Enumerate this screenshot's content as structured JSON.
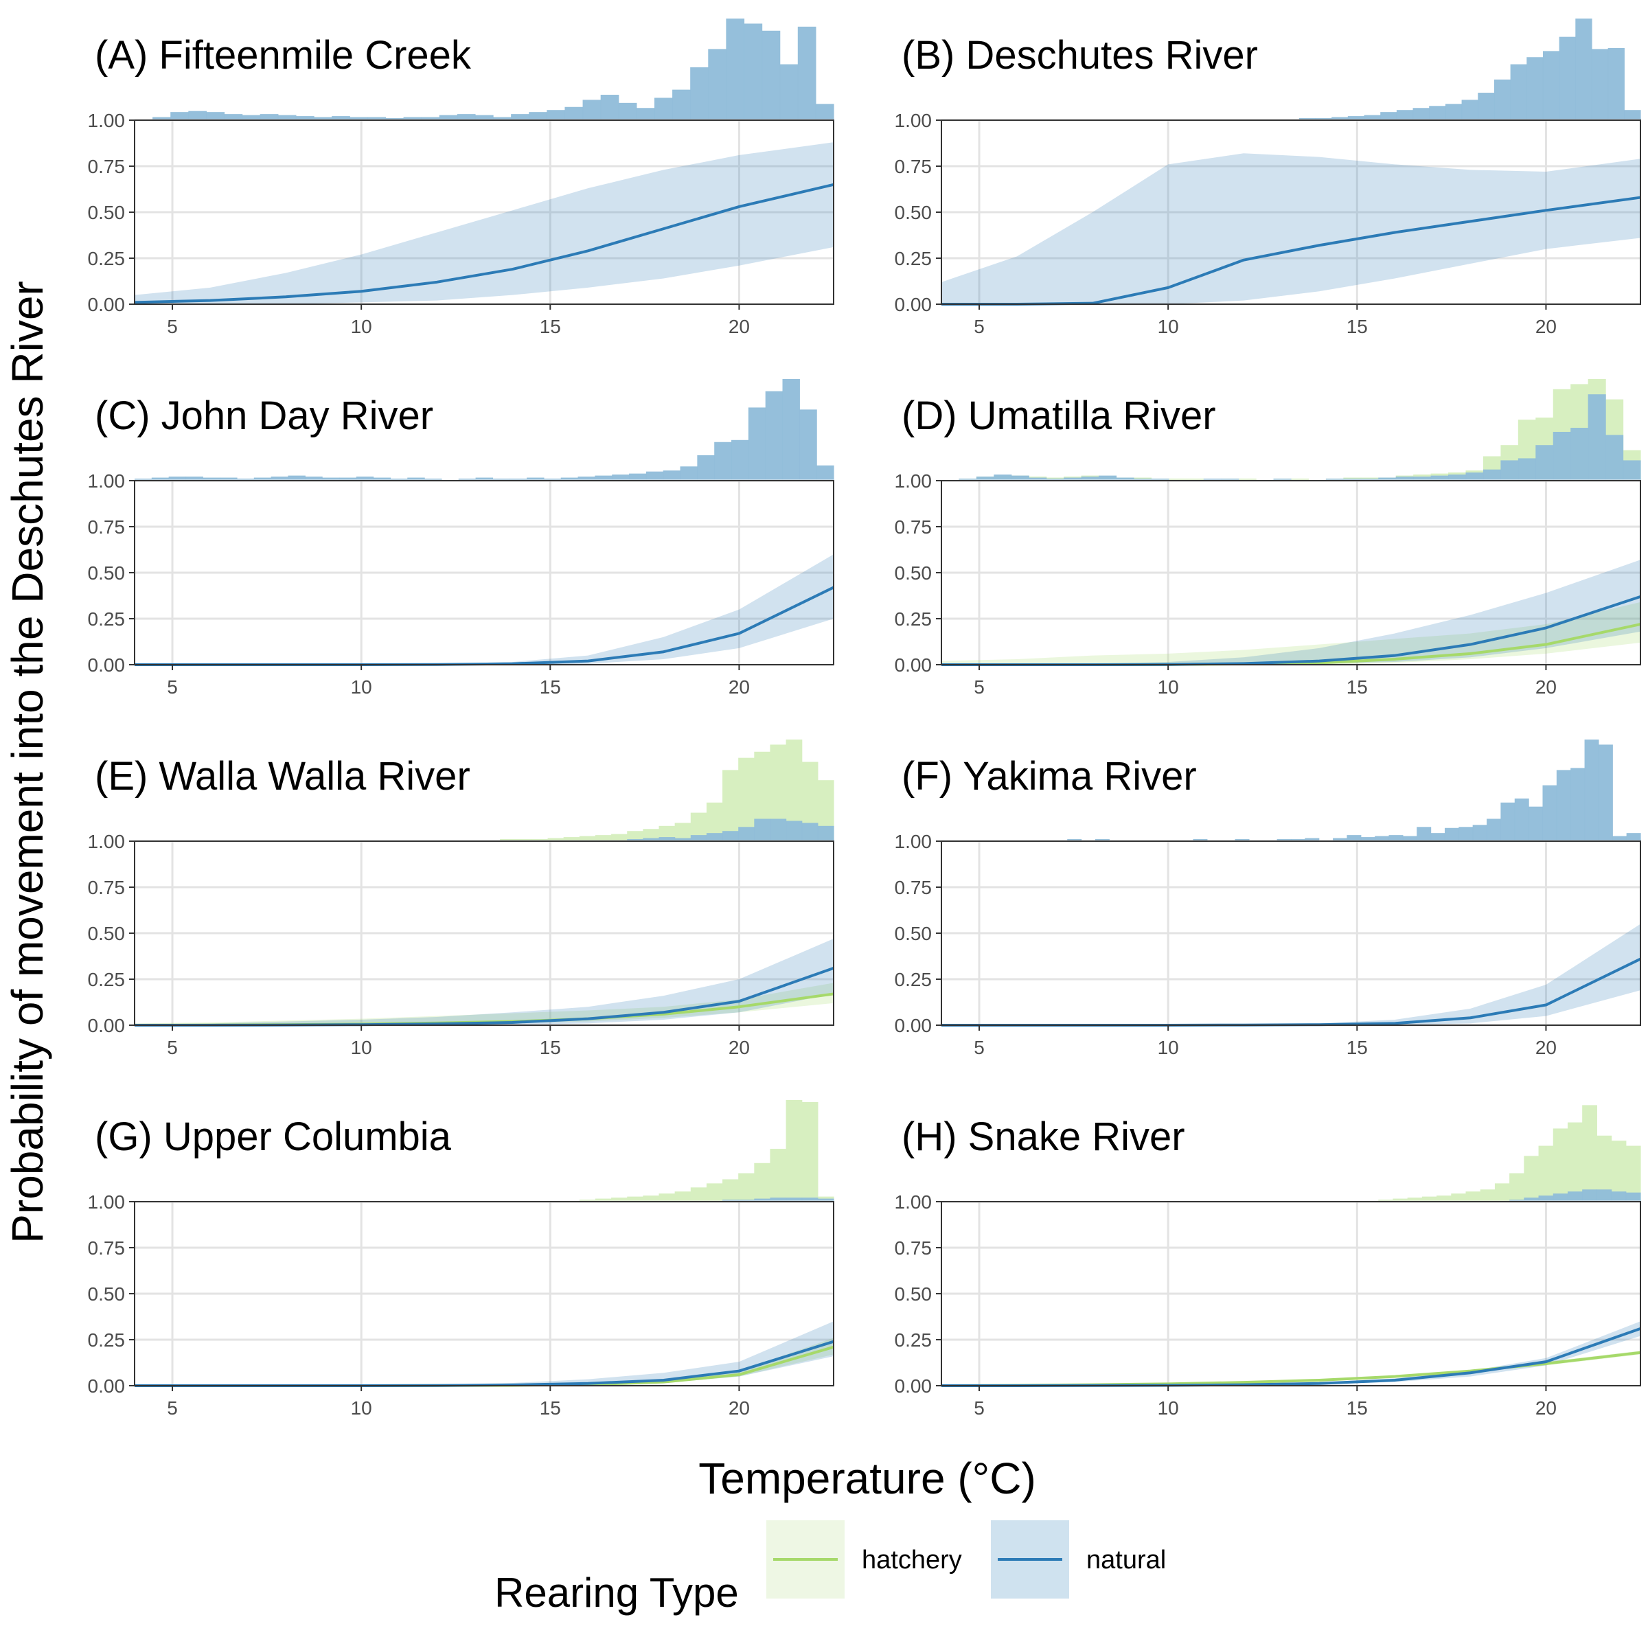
{
  "colors": {
    "hatchery": "#a6d96a",
    "natural": "#2c7bb6",
    "hatchery_hist": "#d7efc0",
    "natural_hist": "#8fbcd9",
    "grid": "#e3e3e3"
  },
  "axes": {
    "xlabel": "Temperature (°C)",
    "ylabel": "Probability of movement into the Deschutes River",
    "xlim": [
      4,
      22.5
    ],
    "ylim": [
      0,
      1
    ],
    "xticks": [
      "5",
      "10",
      "15",
      "20"
    ],
    "yticks": [
      "0.00",
      "0.25",
      "0.50",
      "0.75",
      "1.00"
    ]
  },
  "legend": {
    "title": "Rearing Type",
    "position": "bottom",
    "labels": [
      "hatchery",
      "natural"
    ]
  },
  "chart_data": [
    {
      "type": "line",
      "title": "(A) Fifteenmile Creek",
      "xlabel": "Temperature (°C)",
      "ylabel": "Probability of movement into the Deschutes River",
      "x": [
        4,
        6,
        8,
        10,
        12,
        14,
        16,
        18,
        20,
        22.5
      ],
      "series": [
        {
          "name": "natural",
          "values": [
            0.01,
            0.02,
            0.04,
            0.07,
            0.12,
            0.19,
            0.29,
            0.41,
            0.53,
            0.65
          ],
          "lower": [
            0,
            0,
            0,
            0.01,
            0.02,
            0.05,
            0.09,
            0.14,
            0.21,
            0.31
          ],
          "upper": [
            0.05,
            0.09,
            0.17,
            0.27,
            0.39,
            0.51,
            0.63,
            0.73,
            0.81,
            0.88
          ]
        }
      ],
      "histogram": {
        "natural": [
          0.01,
          0.03,
          0.08,
          0.09,
          0.08,
          0.06,
          0.05,
          0.06,
          0.05,
          0.04,
          0.03,
          0.04,
          0.03,
          0.03,
          0.02,
          0.03,
          0.03,
          0.05,
          0.06,
          0.05,
          0.03,
          0.06,
          0.08,
          0.1,
          0.13,
          0.2,
          0.25,
          0.17,
          0.12,
          0.22,
          0.3,
          0.52,
          0.7,
          1.0,
          0.95,
          0.88,
          0.55,
          0.92,
          0.16
        ]
      }
    },
    {
      "type": "line",
      "title": "(B) Deschutes River",
      "xlabel": "Temperature (°C)",
      "ylabel": "Probability of movement into the Deschutes River",
      "x": [
        4,
        6,
        8,
        10,
        12,
        14,
        16,
        18,
        20,
        22.5
      ],
      "series": [
        {
          "name": "natural",
          "values": [
            0,
            0,
            0.005,
            0.09,
            0.24,
            0.32,
            0.39,
            0.45,
            0.51,
            0.58
          ],
          "lower": [
            0,
            0,
            0,
            0,
            0.02,
            0.07,
            0.14,
            0.22,
            0.3,
            0.36
          ],
          "upper": [
            0.12,
            0.26,
            0.5,
            0.76,
            0.82,
            0.8,
            0.76,
            0.73,
            0.72,
            0.79
          ]
        }
      ],
      "histogram": {
        "natural": [
          0,
          0,
          0,
          0,
          0,
          0,
          0,
          0,
          0,
          0,
          0,
          0,
          0,
          0,
          0,
          0,
          0,
          0,
          0,
          0,
          0.01,
          0.01,
          0.02,
          0.02,
          0.03,
          0.04,
          0.05,
          0.08,
          0.1,
          0.12,
          0.14,
          0.16,
          0.2,
          0.27,
          0.4,
          0.55,
          0.62,
          0.68,
          0.82,
          1.0,
          0.7,
          0.71,
          0.1
        ]
      }
    },
    {
      "type": "line",
      "title": "(C) John Day River",
      "xlabel": "Temperature (°C)",
      "ylabel": "Probability of movement into the Deschutes River",
      "x": [
        4,
        6,
        8,
        10,
        12,
        14,
        16,
        18,
        20,
        22.5
      ],
      "series": [
        {
          "name": "natural",
          "values": [
            0,
            0,
            0,
            0,
            0.001,
            0.005,
            0.02,
            0.07,
            0.17,
            0.42
          ],
          "lower": [
            0,
            0,
            0,
            0,
            0,
            0,
            0.005,
            0.03,
            0.09,
            0.25
          ],
          "upper": [
            0,
            0,
            0,
            0.001,
            0.004,
            0.015,
            0.05,
            0.15,
            0.3,
            0.6
          ]
        }
      ],
      "histogram": {
        "natural": [
          0.02,
          0.03,
          0.04,
          0.04,
          0.03,
          0.03,
          0.02,
          0.03,
          0.04,
          0.05,
          0.04,
          0.03,
          0.03,
          0.04,
          0.03,
          0.02,
          0.03,
          0.02,
          0.01,
          0.02,
          0.03,
          0.02,
          0.02,
          0.03,
          0.02,
          0.03,
          0.04,
          0.05,
          0.06,
          0.07,
          0.09,
          0.1,
          0.14,
          0.25,
          0.38,
          0.4,
          0.72,
          0.88,
          1.0,
          0.7,
          0.15
        ]
      }
    },
    {
      "type": "line",
      "title": "(D) Umatilla River",
      "xlabel": "Temperature (°C)",
      "ylabel": "Probability of movement into the Deschutes River",
      "x": [
        4,
        6,
        8,
        10,
        12,
        14,
        16,
        18,
        20,
        22.5
      ],
      "series": [
        {
          "name": "hatchery",
          "values": [
            0,
            0,
            0,
            0.001,
            0.004,
            0.01,
            0.03,
            0.06,
            0.11,
            0.22
          ],
          "lower": [
            0,
            0,
            0,
            0,
            0,
            0,
            0.01,
            0.03,
            0.06,
            0.12
          ],
          "upper": [
            0.02,
            0.03,
            0.05,
            0.06,
            0.08,
            0.11,
            0.14,
            0.17,
            0.22,
            0.34
          ]
        },
        {
          "name": "natural",
          "values": [
            0,
            0,
            0,
            0.001,
            0.006,
            0.02,
            0.05,
            0.11,
            0.2,
            0.37
          ],
          "lower": [
            0,
            0,
            0,
            0,
            0,
            0.005,
            0.015,
            0.04,
            0.09,
            0.18
          ],
          "upper": [
            0,
            0.001,
            0.005,
            0.015,
            0.04,
            0.09,
            0.17,
            0.27,
            0.39,
            0.57
          ]
        }
      ],
      "histogram": {
        "hatchery": [
          0.01,
          0.02,
          0.04,
          0.05,
          0.05,
          0.04,
          0.03,
          0.04,
          0.05,
          0.04,
          0.03,
          0.03,
          0.02,
          0.02,
          0.02,
          0.01,
          0.02,
          0.02,
          0.01,
          0.02,
          0.02,
          0.01,
          0.02,
          0.03,
          0.03,
          0.03,
          0.05,
          0.06,
          0.07,
          0.08,
          0.1,
          0.24,
          0.35,
          0.6,
          0.62,
          0.9,
          0.95,
          1.0,
          0.8,
          0.3
        ],
        "natural": [
          0.01,
          0.02,
          0.04,
          0.06,
          0.05,
          0.03,
          0.02,
          0.03,
          0.04,
          0.05,
          0.03,
          0.02,
          0.02,
          0.01,
          0.01,
          0.02,
          0.02,
          0.01,
          0.01,
          0.02,
          0.01,
          0.01,
          0.02,
          0.02,
          0.02,
          0.03,
          0.04,
          0.04,
          0.05,
          0.06,
          0.08,
          0.11,
          0.2,
          0.22,
          0.35,
          0.48,
          0.52,
          0.85,
          0.45,
          0.2
        ]
      }
    },
    {
      "type": "line",
      "title": "(E) Walla Walla River",
      "xlabel": "Temperature (°C)",
      "ylabel": "Probability of movement into the Deschutes River",
      "x": [
        4,
        6,
        8,
        10,
        12,
        14,
        16,
        18,
        20,
        22.5
      ],
      "series": [
        {
          "name": "hatchery",
          "values": [
            0,
            0.001,
            0.003,
            0.006,
            0.012,
            0.02,
            0.035,
            0.06,
            0.1,
            0.17
          ],
          "lower": [
            0,
            0,
            0,
            0.001,
            0.004,
            0.01,
            0.02,
            0.04,
            0.07,
            0.12
          ],
          "upper": [
            0.01,
            0.015,
            0.025,
            0.035,
            0.05,
            0.065,
            0.08,
            0.1,
            0.14,
            0.23
          ]
        },
        {
          "name": "natural",
          "values": [
            0,
            0,
            0.001,
            0.003,
            0.007,
            0.015,
            0.035,
            0.07,
            0.13,
            0.31
          ],
          "lower": [
            0,
            0,
            0,
            0,
            0.001,
            0.004,
            0.01,
            0.03,
            0.07,
            0.17
          ],
          "upper": [
            0.005,
            0.01,
            0.02,
            0.03,
            0.045,
            0.07,
            0.1,
            0.16,
            0.25,
            0.47
          ]
        }
      ],
      "histogram": {
        "hatchery": [
          0,
          0,
          0,
          0,
          0,
          0,
          0,
          0,
          0,
          0,
          0,
          0,
          0,
          0,
          0,
          0,
          0,
          0,
          0,
          0,
          0.01,
          0.01,
          0.01,
          0.02,
          0.02,
          0.02,
          0.03,
          0.04,
          0.05,
          0.06,
          0.07,
          0.1,
          0.12,
          0.15,
          0.18,
          0.28,
          0.38,
          0.7,
          0.82,
          0.88,
          0.95,
          1.0,
          0.78,
          0.6
        ],
        "natural": [
          0,
          0,
          0,
          0,
          0,
          0,
          0,
          0,
          0,
          0,
          0,
          0,
          0,
          0,
          0,
          0,
          0,
          0,
          0,
          0,
          0,
          0,
          0,
          0,
          0,
          0,
          0,
          0,
          0,
          0,
          0.01,
          0.02,
          0.03,
          0.04,
          0.03,
          0.06,
          0.08,
          0.1,
          0.14,
          0.22,
          0.22,
          0.2,
          0.18,
          0.15
        ]
      }
    },
    {
      "type": "line",
      "title": "(F) Yakima River",
      "xlabel": "Temperature (°C)",
      "ylabel": "Probability of movement into the Deschutes River",
      "x": [
        4,
        6,
        8,
        10,
        12,
        14,
        16,
        18,
        20,
        22.5
      ],
      "series": [
        {
          "name": "natural",
          "values": [
            0,
            0,
            0,
            0,
            0.001,
            0.003,
            0.01,
            0.04,
            0.11,
            0.36
          ],
          "lower": [
            0,
            0,
            0,
            0,
            0,
            0,
            0.002,
            0.01,
            0.05,
            0.19
          ],
          "upper": [
            0,
            0,
            0,
            0.001,
            0.004,
            0.01,
            0.03,
            0.09,
            0.22,
            0.55
          ]
        }
      ],
      "histogram": {
        "natural": [
          0,
          0,
          0,
          0,
          0,
          0,
          0.01,
          0,
          0,
          0.02,
          0,
          0.02,
          0,
          0,
          0,
          0,
          0.01,
          0,
          0.02,
          0.01,
          0,
          0.02,
          0,
          0.01,
          0.02,
          0.02,
          0.03,
          0.01,
          0.03,
          0.06,
          0.04,
          0.05,
          0.06,
          0.05,
          0.14,
          0.08,
          0.13,
          0.14,
          0.16,
          0.22,
          0.38,
          0.42,
          0.34,
          0.55,
          0.7,
          0.72,
          1.0,
          0.95,
          0.05,
          0.08
        ]
      }
    },
    {
      "type": "line",
      "title": "(G) Upper Columbia",
      "xlabel": "Temperature (°C)",
      "ylabel": "Probability of movement into the Deschutes River",
      "x": [
        4,
        6,
        8,
        10,
        12,
        14,
        16,
        18,
        20,
        22.5
      ],
      "series": [
        {
          "name": "hatchery",
          "values": [
            0,
            0,
            0,
            0,
            0.001,
            0.002,
            0.006,
            0.02,
            0.06,
            0.21
          ],
          "lower": [
            0,
            0,
            0,
            0,
            0,
            0.001,
            0.004,
            0.015,
            0.05,
            0.17
          ],
          "upper": [
            0,
            0,
            0,
            0.001,
            0.002,
            0.004,
            0.01,
            0.03,
            0.08,
            0.26
          ]
        },
        {
          "name": "natural",
          "values": [
            0,
            0,
            0,
            0,
            0.001,
            0.004,
            0.012,
            0.03,
            0.08,
            0.24
          ],
          "lower": [
            0,
            0,
            0,
            0,
            0,
            0.001,
            0.004,
            0.015,
            0.05,
            0.16
          ],
          "upper": [
            0,
            0,
            0,
            0.002,
            0.006,
            0.015,
            0.035,
            0.07,
            0.13,
            0.35
          ]
        }
      ],
      "histogram": {
        "hatchery": [
          0,
          0,
          0,
          0,
          0,
          0,
          0,
          0,
          0,
          0,
          0,
          0,
          0,
          0,
          0,
          0,
          0,
          0,
          0,
          0,
          0,
          0,
          0,
          0,
          0.01,
          0.01,
          0.01,
          0.01,
          0.02,
          0.03,
          0.04,
          0.05,
          0.06,
          0.08,
          0.1,
          0.14,
          0.18,
          0.22,
          0.28,
          0.38,
          0.52,
          1.0,
          0.98,
          0.05
        ],
        "natural": [
          0,
          0,
          0,
          0,
          0,
          0,
          0,
          0,
          0,
          0,
          0,
          0,
          0,
          0,
          0,
          0,
          0,
          0,
          0,
          0,
          0,
          0,
          0,
          0,
          0,
          0,
          0,
          0,
          0,
          0,
          0,
          0,
          0,
          0,
          0,
          0,
          0.01,
          0.02,
          0.02,
          0.03,
          0.04,
          0.04,
          0.04,
          0.03
        ]
      }
    },
    {
      "type": "line",
      "title": "(H) Snake River",
      "xlabel": "Temperature (°C)",
      "ylabel": "Probability of movement into the Deschutes River",
      "x": [
        4,
        6,
        8,
        10,
        12,
        14,
        16,
        18,
        20,
        22.5
      ],
      "series": [
        {
          "name": "hatchery",
          "values": [
            0,
            0.002,
            0.005,
            0.01,
            0.018,
            0.03,
            0.05,
            0.08,
            0.12,
            0.18
          ],
          "lower": [
            0,
            0.001,
            0.004,
            0.009,
            0.016,
            0.028,
            0.045,
            0.075,
            0.11,
            0.17
          ],
          "upper": [
            0.001,
            0.003,
            0.006,
            0.012,
            0.02,
            0.033,
            0.055,
            0.085,
            0.13,
            0.19
          ]
        },
        {
          "name": "natural",
          "values": [
            0,
            0,
            0.001,
            0.002,
            0.005,
            0.012,
            0.03,
            0.07,
            0.13,
            0.31
          ],
          "lower": [
            0,
            0,
            0,
            0.001,
            0.003,
            0.008,
            0.02,
            0.05,
            0.11,
            0.27
          ],
          "upper": [
            0,
            0.001,
            0.002,
            0.004,
            0.008,
            0.017,
            0.04,
            0.08,
            0.15,
            0.35
          ]
        }
      ],
      "histogram": {
        "hatchery": [
          0,
          0,
          0,
          0,
          0,
          0,
          0,
          0,
          0,
          0,
          0,
          0,
          0,
          0,
          0,
          0,
          0,
          0,
          0,
          0,
          0,
          0,
          0,
          0,
          0,
          0,
          0,
          0,
          0.01,
          0.01,
          0.02,
          0.03,
          0.04,
          0.05,
          0.06,
          0.08,
          0.1,
          0.12,
          0.18,
          0.28,
          0.45,
          0.55,
          0.72,
          0.78,
          0.95,
          0.65,
          0.6,
          0.55
        ],
        "natural": [
          0,
          0,
          0,
          0,
          0,
          0,
          0,
          0,
          0,
          0,
          0,
          0,
          0,
          0,
          0,
          0,
          0,
          0,
          0,
          0,
          0,
          0,
          0,
          0,
          0,
          0,
          0,
          0,
          0,
          0,
          0,
          0,
          0,
          0,
          0,
          0,
          0,
          0,
          0.01,
          0.02,
          0.04,
          0.06,
          0.08,
          0.1,
          0.12,
          0.12,
          0.1,
          0.09
        ]
      }
    }
  ]
}
